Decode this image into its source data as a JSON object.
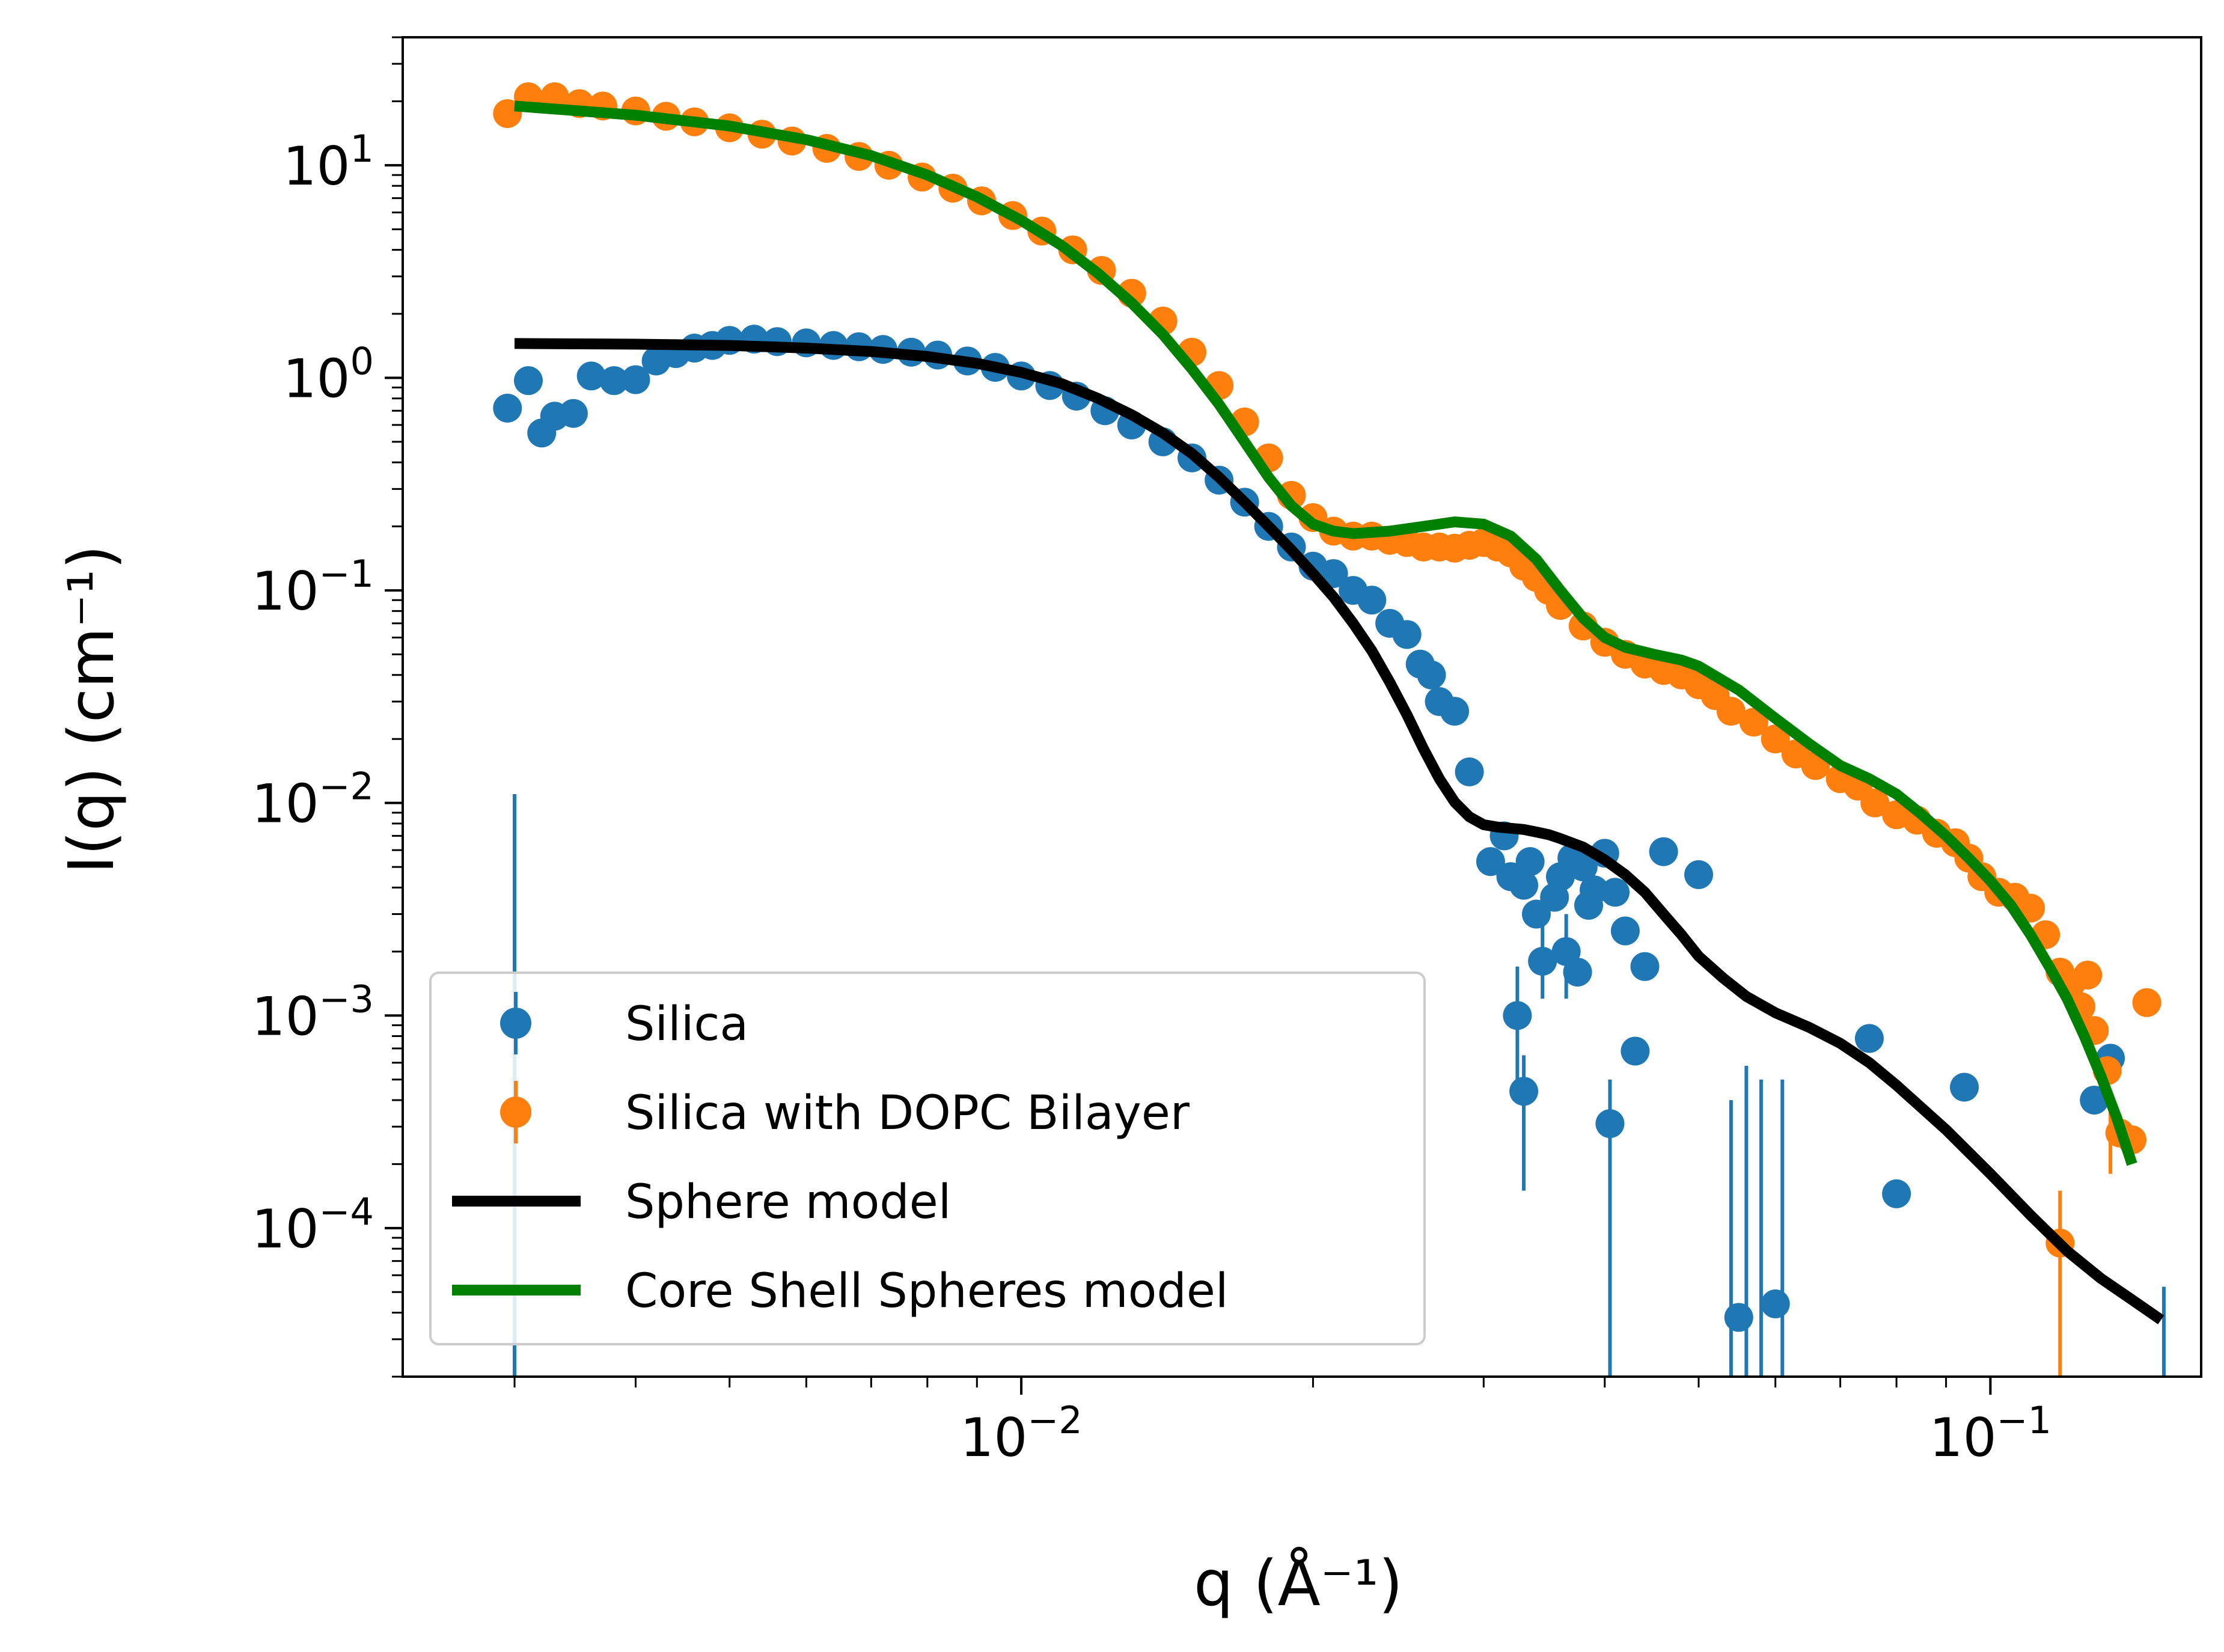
{
  "chart_data": {
    "type": "scatter",
    "xscale": "log",
    "yscale": "log",
    "xlim": [
      0.0023,
      0.165
    ],
    "ylim": [
      2e-05,
      40
    ],
    "xlabel": "q (Å⁻¹)",
    "ylabel": "I(q) (cm⁻¹)",
    "x_ticks": [
      {
        "value": 0.01,
        "base": "10",
        "exp": "−2"
      },
      {
        "value": 0.1,
        "base": "10",
        "exp": "−1"
      }
    ],
    "y_ticks": [
      {
        "value": 10,
        "base": "10",
        "exp": "1"
      },
      {
        "value": 1,
        "base": "10",
        "exp": "0"
      },
      {
        "value": 0.1,
        "base": "10",
        "exp": "−1"
      },
      {
        "value": 0.01,
        "base": "10",
        "exp": "−2"
      },
      {
        "value": 0.001,
        "base": "10",
        "exp": "−3"
      },
      {
        "value": 0.0001,
        "base": "10",
        "exp": "−4"
      }
    ],
    "legend_position": "lower-left",
    "series": [
      {
        "name": "Silica",
        "kind": "errorbar-points",
        "color": "#1f77b4",
        "points": [
          [
            0.00295,
            0.72
          ],
          [
            0.0031,
            0.97
          ],
          [
            0.0032,
            0.55
          ],
          [
            0.0033,
            0.66
          ],
          [
            0.00345,
            0.68
          ],
          [
            0.0036,
            1.02
          ],
          [
            0.0038,
            0.97
          ],
          [
            0.004,
            0.98
          ],
          [
            0.0042,
            1.2
          ],
          [
            0.0044,
            1.3
          ],
          [
            0.0046,
            1.38
          ],
          [
            0.0048,
            1.42
          ],
          [
            0.005,
            1.5
          ],
          [
            0.0053,
            1.52
          ],
          [
            0.0056,
            1.48
          ],
          [
            0.006,
            1.46
          ],
          [
            0.0064,
            1.42
          ],
          [
            0.0068,
            1.4
          ],
          [
            0.0072,
            1.36
          ],
          [
            0.0077,
            1.32
          ],
          [
            0.0082,
            1.28
          ],
          [
            0.0088,
            1.2
          ],
          [
            0.0094,
            1.12
          ],
          [
            0.01,
            1.02
          ],
          [
            0.0107,
            0.92
          ],
          [
            0.0114,
            0.82
          ],
          [
            0.0122,
            0.7
          ],
          [
            0.013,
            0.6
          ],
          [
            0.014,
            0.5
          ],
          [
            0.015,
            0.42
          ],
          [
            0.016,
            0.33
          ],
          [
            0.017,
            0.26
          ],
          [
            0.018,
            0.2
          ],
          [
            0.019,
            0.16
          ],
          [
            0.02,
            0.13
          ],
          [
            0.021,
            0.12
          ],
          [
            0.022,
            0.1
          ],
          [
            0.023,
            0.09
          ],
          [
            0.024,
            0.07
          ],
          [
            0.025,
            0.062
          ],
          [
            0.0258,
            0.045
          ],
          [
            0.0265,
            0.04
          ],
          [
            0.027,
            0.03
          ],
          [
            0.028,
            0.027
          ],
          [
            0.029,
            0.014
          ],
          [
            0.0305,
            0.0053
          ],
          [
            0.0315,
            0.007
          ],
          [
            0.032,
            0.0045
          ],
          [
            0.033,
            0.0041
          ],
          [
            0.0335,
            0.0053
          ],
          [
            0.034,
            0.003
          ],
          [
            0.0345,
            0.0018
          ],
          [
            0.0355,
            0.0036
          ],
          [
            0.036,
            0.0045
          ],
          [
            0.0365,
            0.002
          ],
          [
            0.037,
            0.0055
          ],
          [
            0.0375,
            0.0016
          ],
          [
            0.038,
            0.005
          ],
          [
            0.0385,
            0.0033
          ],
          [
            0.039,
            0.0039
          ],
          [
            0.04,
            0.0058
          ],
          [
            0.041,
            0.0038
          ],
          [
            0.042,
            0.0025
          ],
          [
            0.043,
            0.00068
          ],
          [
            0.044,
            0.0017
          ],
          [
            0.046,
            0.0059
          ],
          [
            0.05,
            0.0046
          ],
          [
            0.0405,
            0.00031
          ],
          [
            0.0325,
            0.001
          ],
          [
            0.033,
            0.00044
          ],
          [
            0.055,
            3.8e-05
          ],
          [
            0.06,
            4.4e-05
          ],
          [
            0.075,
            0.00078
          ],
          [
            0.08,
            0.000145
          ],
          [
            0.094,
            0.00046
          ],
          [
            0.128,
            0.0004
          ],
          [
            0.133,
            0.00063
          ]
        ],
        "error_bars": [
          [
            0.003,
            2e-06,
            0.011
          ],
          [
            0.0325,
            0.0004,
            0.0017
          ],
          [
            0.033,
            0.00015,
            0.00065
          ],
          [
            0.0345,
            0.0012,
            0.0028
          ],
          [
            0.0365,
            0.0012,
            0.003
          ],
          [
            0.0405,
            2e-06,
            0.0005
          ],
          [
            0.054,
            2e-06,
            0.0004
          ],
          [
            0.056,
            2e-06,
            0.00058
          ],
          [
            0.058,
            2e-06,
            0.0005
          ],
          [
            0.061,
            2e-06,
            0.0005
          ],
          [
            0.151,
            2e-06,
            5.3e-05
          ]
        ]
      },
      {
        "name": "Silica with DOPC Bilayer",
        "kind": "errorbar-points",
        "color": "#ff7f0e",
        "points": [
          [
            0.00295,
            17.5
          ],
          [
            0.0031,
            21
          ],
          [
            0.0033,
            21
          ],
          [
            0.0035,
            19.5
          ],
          [
            0.0037,
            19
          ],
          [
            0.004,
            18
          ],
          [
            0.0043,
            17
          ],
          [
            0.0046,
            16
          ],
          [
            0.005,
            15
          ],
          [
            0.0054,
            14
          ],
          [
            0.0058,
            13
          ],
          [
            0.0063,
            12
          ],
          [
            0.0068,
            11
          ],
          [
            0.0073,
            10
          ],
          [
            0.0079,
            8.8
          ],
          [
            0.0085,
            7.8
          ],
          [
            0.0091,
            6.8
          ],
          [
            0.0098,
            5.8
          ],
          [
            0.0105,
            4.9
          ],
          [
            0.0113,
            4
          ],
          [
            0.0121,
            3.2
          ],
          [
            0.013,
            2.5
          ],
          [
            0.014,
            1.85
          ],
          [
            0.015,
            1.32
          ],
          [
            0.016,
            0.92
          ],
          [
            0.017,
            0.62
          ],
          [
            0.018,
            0.42
          ],
          [
            0.019,
            0.28
          ],
          [
            0.02,
            0.22
          ],
          [
            0.021,
            0.19
          ],
          [
            0.022,
            0.18
          ],
          [
            0.023,
            0.18
          ],
          [
            0.024,
            0.172
          ],
          [
            0.025,
            0.168
          ],
          [
            0.026,
            0.16
          ],
          [
            0.027,
            0.16
          ],
          [
            0.028,
            0.158
          ],
          [
            0.029,
            0.163
          ],
          [
            0.03,
            0.168
          ],
          [
            0.031,
            0.16
          ],
          [
            0.032,
            0.15
          ],
          [
            0.033,
            0.13
          ],
          [
            0.034,
            0.115
          ],
          [
            0.035,
            0.1
          ],
          [
            0.036,
            0.085
          ],
          [
            0.038,
            0.068
          ],
          [
            0.04,
            0.057
          ],
          [
            0.042,
            0.05
          ],
          [
            0.044,
            0.045
          ],
          [
            0.046,
            0.042
          ],
          [
            0.048,
            0.04
          ],
          [
            0.05,
            0.036
          ],
          [
            0.052,
            0.032
          ],
          [
            0.054,
            0.027
          ],
          [
            0.057,
            0.024
          ],
          [
            0.06,
            0.02
          ],
          [
            0.063,
            0.017
          ],
          [
            0.066,
            0.015
          ],
          [
            0.07,
            0.013
          ],
          [
            0.073,
            0.012
          ],
          [
            0.076,
            0.01
          ],
          [
            0.08,
            0.0088
          ],
          [
            0.084,
            0.0083
          ],
          [
            0.088,
            0.0072
          ],
          [
            0.092,
            0.0065
          ],
          [
            0.095,
            0.0055
          ],
          [
            0.098,
            0.0045
          ],
          [
            0.102,
            0.0038
          ],
          [
            0.106,
            0.0036
          ],
          [
            0.11,
            0.0032
          ],
          [
            0.114,
            0.0024
          ],
          [
            0.118,
            0.0016
          ],
          [
            0.121,
            0.0014
          ],
          [
            0.124,
            0.0011
          ],
          [
            0.128,
            0.00085
          ],
          [
            0.132,
            0.00055
          ],
          [
            0.136,
            0.00028
          ],
          [
            0.14,
            0.00026
          ],
          [
            0.145,
            0.00115
          ],
          [
            0.126,
            0.00155
          ],
          [
            0.118,
            8.5e-05
          ]
        ],
        "error_bars": [
          [
            0.118,
            2e-06,
            0.00015
          ],
          [
            0.133,
            0.00018,
            0.00036
          ]
        ]
      },
      {
        "name": "Sphere model",
        "kind": "line",
        "color": "#000000",
        "points": [
          [
            0.003,
            1.45
          ],
          [
            0.004,
            1.44
          ],
          [
            0.005,
            1.42
          ],
          [
            0.006,
            1.38
          ],
          [
            0.007,
            1.33
          ],
          [
            0.008,
            1.26
          ],
          [
            0.009,
            1.17
          ],
          [
            0.01,
            1.06
          ],
          [
            0.011,
            0.94
          ],
          [
            0.012,
            0.8
          ],
          [
            0.013,
            0.67
          ],
          [
            0.014,
            0.55
          ],
          [
            0.015,
            0.44
          ],
          [
            0.016,
            0.34
          ],
          [
            0.017,
            0.26
          ],
          [
            0.018,
            0.2
          ],
          [
            0.019,
            0.155
          ],
          [
            0.02,
            0.12
          ],
          [
            0.021,
            0.093
          ],
          [
            0.022,
            0.07
          ],
          [
            0.023,
            0.052
          ],
          [
            0.024,
            0.037
          ],
          [
            0.025,
            0.026
          ],
          [
            0.026,
            0.018
          ],
          [
            0.027,
            0.013
          ],
          [
            0.028,
            0.0101
          ],
          [
            0.029,
            0.0086
          ],
          [
            0.03,
            0.0079
          ],
          [
            0.031,
            0.0077
          ],
          [
            0.032,
            0.0076
          ],
          [
            0.033,
            0.0075
          ],
          [
            0.034,
            0.0073
          ],
          [
            0.035,
            0.0071
          ],
          [
            0.036,
            0.0068
          ],
          [
            0.038,
            0.0062
          ],
          [
            0.04,
            0.0054
          ],
          [
            0.042,
            0.0046
          ],
          [
            0.044,
            0.0038
          ],
          [
            0.046,
            0.003
          ],
          [
            0.048,
            0.0024
          ],
          [
            0.05,
            0.0019
          ],
          [
            0.053,
            0.0015
          ],
          [
            0.056,
            0.00123
          ],
          [
            0.06,
            0.00103
          ],
          [
            0.065,
            0.00088
          ],
          [
            0.07,
            0.00074
          ],
          [
            0.075,
            0.0006
          ],
          [
            0.08,
            0.00047
          ],
          [
            0.09,
            0.00029
          ],
          [
            0.1,
            0.00018
          ],
          [
            0.11,
            0.000115
          ],
          [
            0.12,
            7.8e-05
          ],
          [
            0.13,
            5.8e-05
          ],
          [
            0.14,
            4.6e-05
          ],
          [
            0.15,
            3.7e-05
          ]
        ]
      },
      {
        "name": "Core Shell Spheres model",
        "kind": "line",
        "color": "#008000",
        "points": [
          [
            0.003,
            19
          ],
          [
            0.004,
            17.2
          ],
          [
            0.005,
            15.3
          ],
          [
            0.006,
            13.2
          ],
          [
            0.007,
            11.1
          ],
          [
            0.008,
            9.0
          ],
          [
            0.009,
            7.1
          ],
          [
            0.01,
            5.5
          ],
          [
            0.011,
            4.2
          ],
          [
            0.012,
            3.1
          ],
          [
            0.013,
            2.25
          ],
          [
            0.014,
            1.6
          ],
          [
            0.015,
            1.1
          ],
          [
            0.016,
            0.75
          ],
          [
            0.017,
            0.5
          ],
          [
            0.018,
            0.34
          ],
          [
            0.019,
            0.25
          ],
          [
            0.02,
            0.205
          ],
          [
            0.021,
            0.19
          ],
          [
            0.022,
            0.185
          ],
          [
            0.024,
            0.19
          ],
          [
            0.026,
            0.2
          ],
          [
            0.028,
            0.21
          ],
          [
            0.03,
            0.205
          ],
          [
            0.032,
            0.18
          ],
          [
            0.034,
            0.14
          ],
          [
            0.036,
            0.1
          ],
          [
            0.038,
            0.074
          ],
          [
            0.04,
            0.06
          ],
          [
            0.042,
            0.054
          ],
          [
            0.045,
            0.05
          ],
          [
            0.048,
            0.047
          ],
          [
            0.05,
            0.044
          ],
          [
            0.055,
            0.034
          ],
          [
            0.06,
            0.025
          ],
          [
            0.065,
            0.019
          ],
          [
            0.07,
            0.015
          ],
          [
            0.075,
            0.013
          ],
          [
            0.08,
            0.011
          ],
          [
            0.085,
            0.0088
          ],
          [
            0.09,
            0.007
          ],
          [
            0.095,
            0.0055
          ],
          [
            0.1,
            0.0043
          ],
          [
            0.105,
            0.0033
          ],
          [
            0.11,
            0.0024
          ],
          [
            0.115,
            0.0017
          ],
          [
            0.12,
            0.0012
          ],
          [
            0.125,
            0.0008
          ],
          [
            0.13,
            0.00052
          ],
          [
            0.135,
            0.00033
          ],
          [
            0.14,
            0.0002
          ]
        ]
      }
    ]
  }
}
